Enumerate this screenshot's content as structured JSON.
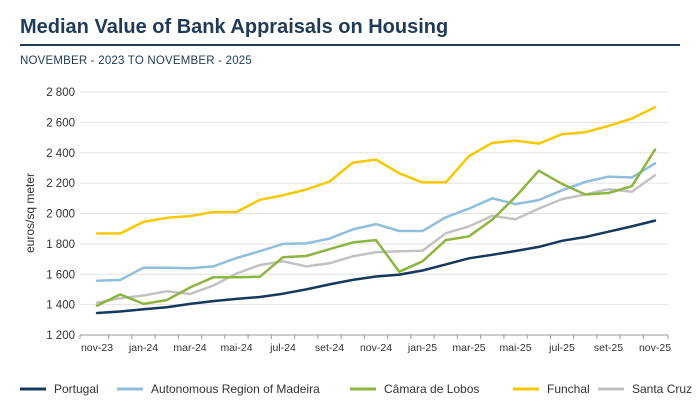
{
  "header": {
    "title": "Median Value of Bank Appraisals on Housing",
    "subtitle": "NOVEMBER - 2023 TO NOVEMBER - 2025"
  },
  "chart_data": {
    "type": "line",
    "ylabel": "euros/sq meter",
    "ylim": [
      1200,
      2800
    ],
    "yticks": [
      1200,
      1400,
      1600,
      1800,
      2000,
      2200,
      2400,
      2600,
      2800
    ],
    "ytick_labels": [
      "1 200",
      "1 400",
      "1 600",
      "1 800",
      "2 000",
      "2 200",
      "2 400",
      "2 600",
      "2 800"
    ],
    "x": [
      "nov-23",
      "dez-23",
      "jan-24",
      "fev-24",
      "mar-24",
      "abr-24",
      "mai-24",
      "jun-24",
      "jul-24",
      "ago-24",
      "set-24",
      "out-24",
      "nov-24",
      "dez-24",
      "jan-25",
      "fev-25",
      "mar-25",
      "abr-25",
      "mai-25",
      "jun-25",
      "jul-25",
      "ago-25",
      "set-25",
      "out-25",
      "nov-25"
    ],
    "xtick_labels": [
      "nov-23",
      "jan-24",
      "mar-24",
      "mai-24",
      "jul-24",
      "set-24",
      "nov-24",
      "jan-25",
      "mar-25",
      "mai-25",
      "jul-25",
      "set-25",
      "nov-25"
    ],
    "legend_position": "bottom",
    "series": [
      {
        "name": "Portugal",
        "color": "#15385e",
        "values": [
          1345,
          1355,
          1370,
          1383,
          1405,
          1423,
          1438,
          1450,
          1472,
          1500,
          1533,
          1563,
          1585,
          1598,
          1625,
          1665,
          1705,
          1728,
          1753,
          1780,
          1820,
          1845,
          1880,
          1915,
          1953
        ]
      },
      {
        "name": "Autonomous Region of Madeira",
        "color": "#8fbfdc",
        "values": [
          1557,
          1563,
          1643,
          1643,
          1640,
          1652,
          1707,
          1752,
          1800,
          1803,
          1835,
          1895,
          1930,
          1885,
          1885,
          1975,
          2032,
          2100,
          2062,
          2088,
          2153,
          2208,
          2243,
          2237,
          2330
        ]
      },
      {
        "name": "Câmara de Lobos",
        "color": "#8db53f",
        "values": [
          1393,
          1467,
          1405,
          1430,
          1513,
          1580,
          1580,
          1583,
          1712,
          1720,
          1765,
          1810,
          1825,
          1617,
          1685,
          1825,
          1850,
          1960,
          2110,
          2282,
          2195,
          2125,
          2135,
          2180,
          2420
        ]
      },
      {
        "name": "Funchal",
        "color": "#f7c800",
        "values": [
          1868,
          1868,
          1945,
          1972,
          1983,
          2010,
          2010,
          2090,
          2120,
          2158,
          2210,
          2335,
          2355,
          2265,
          2205,
          2205,
          2378,
          2465,
          2480,
          2460,
          2522,
          2535,
          2577,
          2625,
          2700
        ]
      },
      {
        "name": "Santa Cruz",
        "color": "#c2c2c2",
        "values": [
          1413,
          1442,
          1460,
          1488,
          1470,
          1525,
          1605,
          1660,
          1685,
          1652,
          1672,
          1718,
          1745,
          1752,
          1755,
          1870,
          1915,
          1985,
          1962,
          2032,
          2095,
          2125,
          2160,
          2143,
          2252
        ]
      }
    ]
  }
}
